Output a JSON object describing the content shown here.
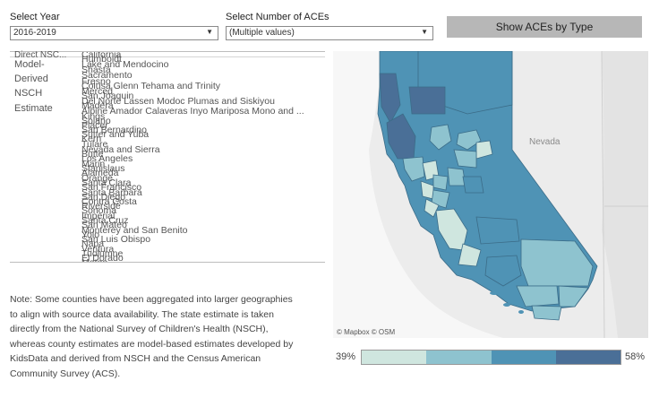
{
  "filters": {
    "year_label": "Select Year",
    "year_value": "2016-2019",
    "aces_label": "Select Number of ACEs",
    "aces_value": "(Multiple values)",
    "show_button": "Show ACEs by Type"
  },
  "estimate_legend": [
    "Direct NSC...",
    "Model-",
    "Derived",
    "NSCH",
    "Estimate"
  ],
  "county_names": [
    "California",
    "Humboldt",
    "Lake and Mendocino",
    "Shasta",
    "Sacramento",
    "Fresno",
    "Colusa Glenn Tehama and Trinity",
    "Merced",
    "San Joaquin",
    "Del Norte Lassen Modoc Plumas and Siskiyou",
    "Madera",
    "Alpine Amador Calaveras Inyo Mariposa Mono and ...",
    "Kings",
    "Solano",
    "Placer",
    "San Bernardino",
    "Sutter and Yuba",
    "Kern",
    "Tulare",
    "Nevada and Sierra",
    "Butte",
    "Los Angeles",
    "Marin",
    "Stanislaus",
    "Alameda",
    "Orange",
    "Santa Clara",
    "San Francisco",
    "Santa Barbara",
    "San Diego",
    "Contra Costa",
    "Riverside",
    "Sonoma",
    "Imperial",
    "Santa Cruz",
    "San Mateo",
    "Monterey and San Benito",
    "Yolo",
    "San Luis Obispo",
    "Napa",
    "Ventura",
    "Tuolumne",
    "El Dorado",
    "Mateo"
  ],
  "note": [
    "Note: Some counties have been aggregated into larger geographies",
    "to align with source data availability. The state estimate is taken",
    "directly from the National Survey of Children's Health (NSCH),",
    "whereas county estimates are model-based estimates developed by",
    "KidsData and derived from NSCH and the Census American",
    "Community Survey (ACS)."
  ],
  "map": {
    "state_label": "Nevada",
    "attribution": "© Mapbox  © OSM",
    "colors": [
      "#cfe6df",
      "#8ec3cf",
      "#4f93b5",
      "#4a6f97"
    ]
  },
  "scale": {
    "min_label": "39%",
    "max_label": "58%"
  }
}
